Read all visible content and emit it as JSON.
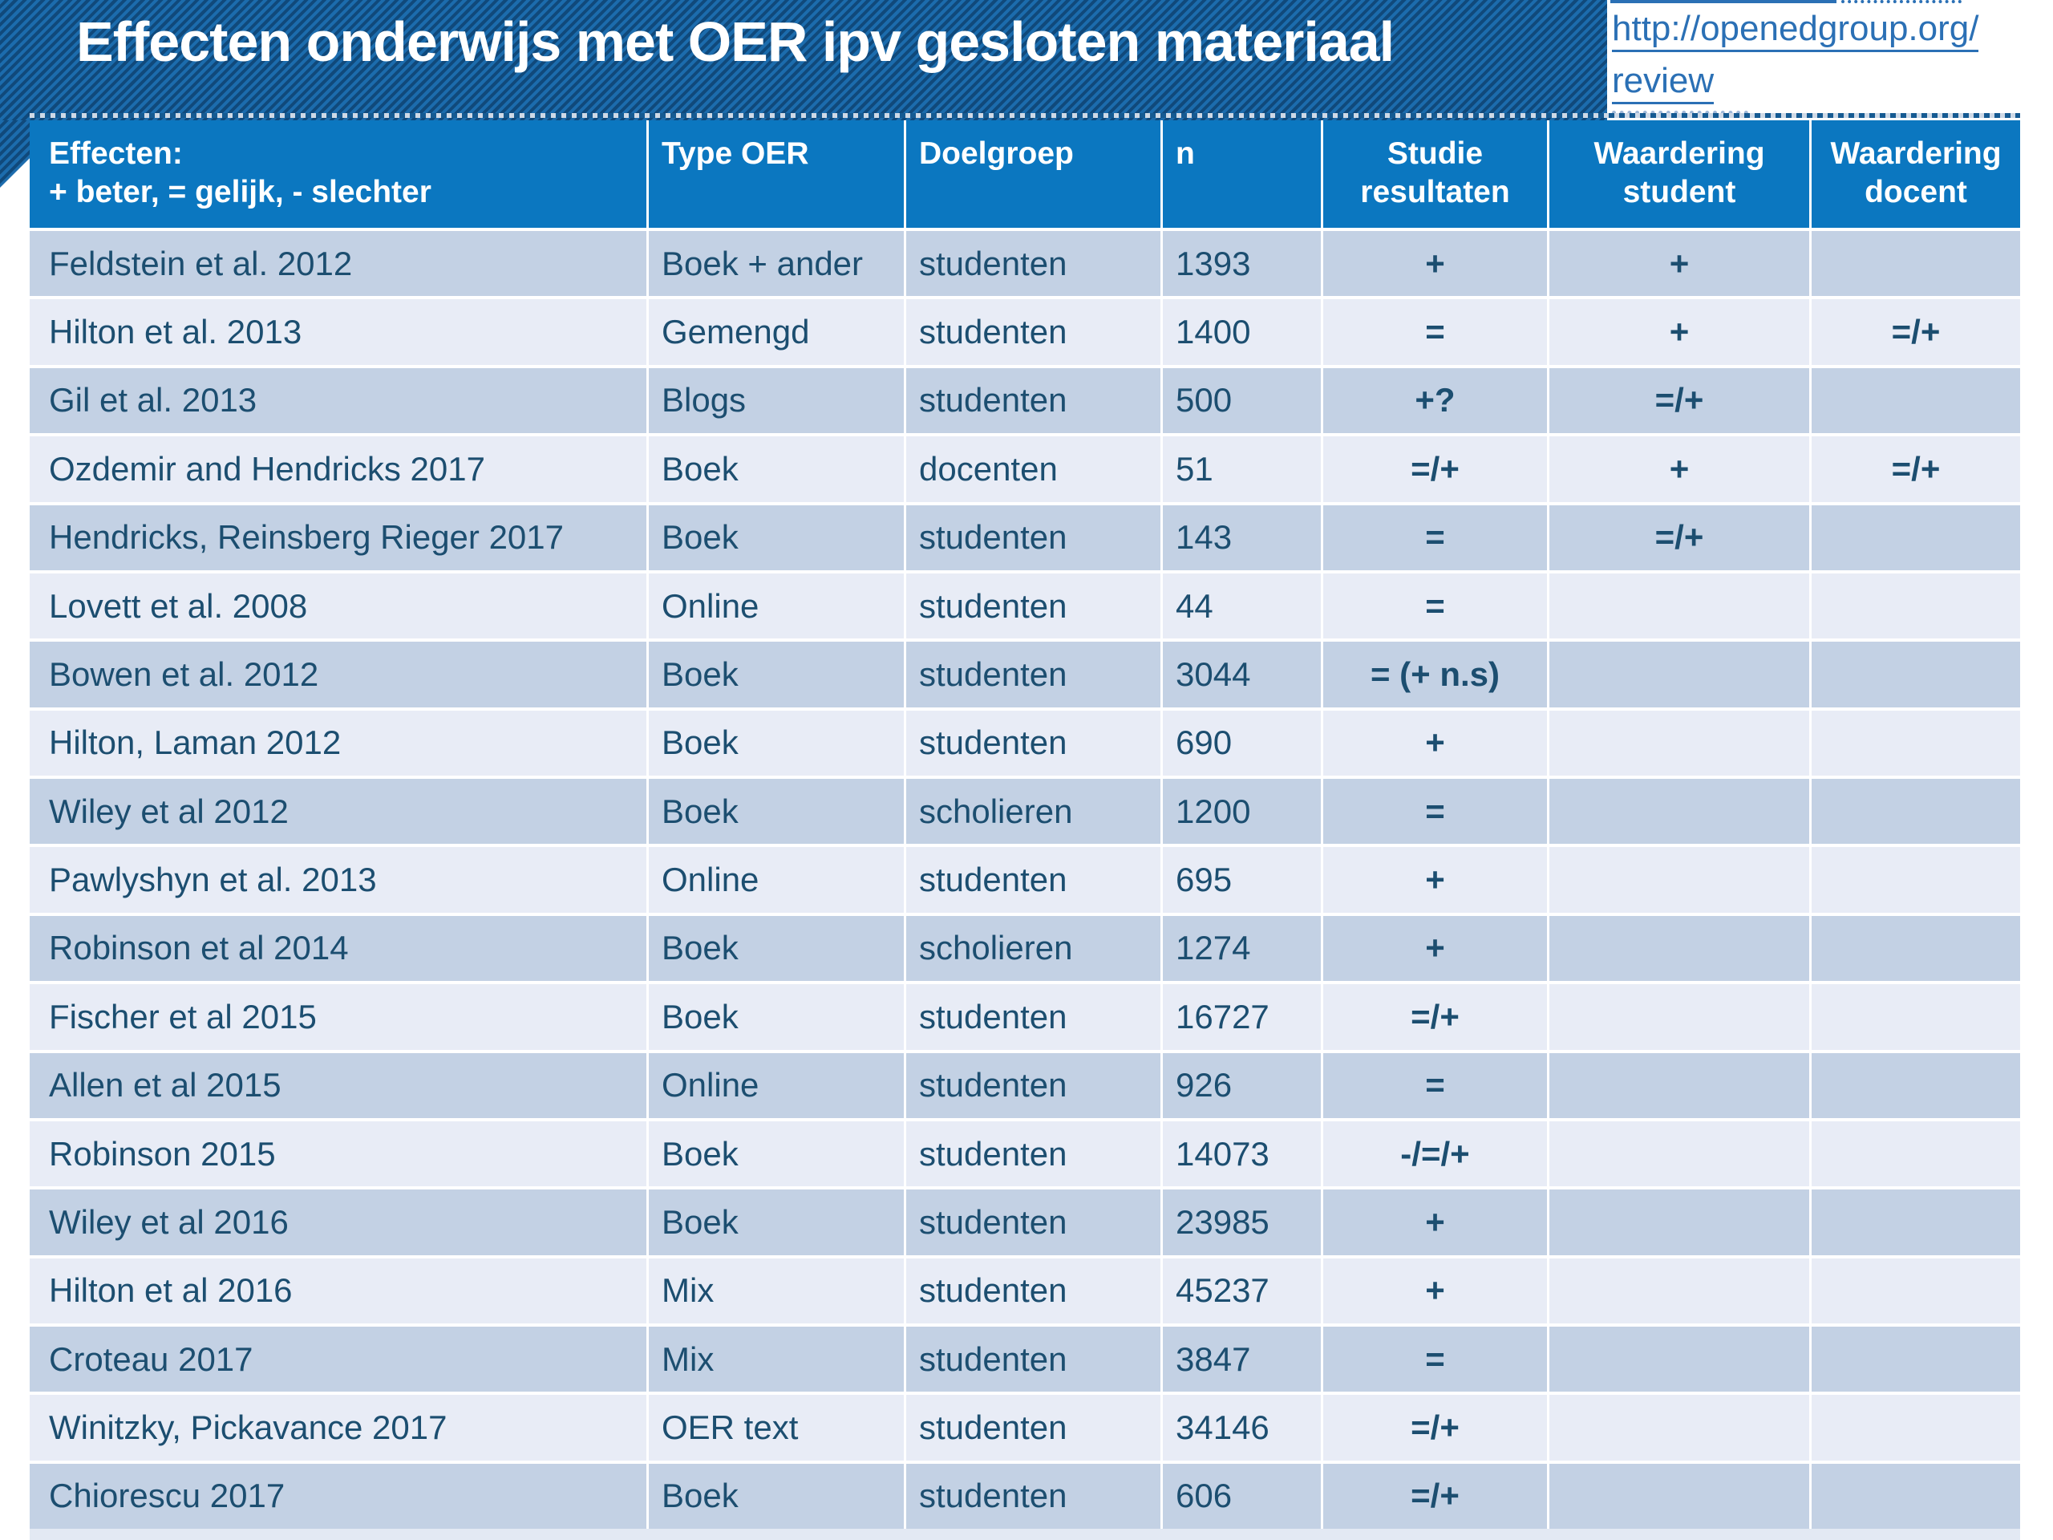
{
  "title": "Effecten onderwijs met OER ipv gesloten materiaal",
  "link": {
    "line1": "http://openedgroup.org/",
    "line2": "review",
    "full_url": "http://openedgroup.org/review"
  },
  "table": {
    "columns": [
      {
        "line1": "Effecten:",
        "line2": "+ beter, = gelijk, - slechter"
      },
      {
        "line1": "Type OER",
        "line2": ""
      },
      {
        "line1": "Doelgroep",
        "line2": ""
      },
      {
        "line1": "n",
        "line2": ""
      },
      {
        "line1": "Studie",
        "line2": "resultaten"
      },
      {
        "line1": "Waardering",
        "line2": "student"
      },
      {
        "line1": "Waardering",
        "line2": "docent"
      }
    ],
    "rows": [
      [
        "Feldstein et al. 2012",
        "Boek + ander",
        "studenten",
        "1393",
        "+",
        "+",
        ""
      ],
      [
        "Hilton et al. 2013",
        "Gemengd",
        "studenten",
        "1400",
        "=",
        "+",
        "=/+"
      ],
      [
        "Gil et al. 2013",
        "Blogs",
        "studenten",
        "500",
        "+?",
        "=/+",
        ""
      ],
      [
        "Ozdemir and Hendricks 2017",
        "Boek",
        "docenten",
        "51",
        "=/+",
        "+",
        "=/+"
      ],
      [
        "Hendricks, Reinsberg Rieger 2017",
        "Boek",
        "studenten",
        "143",
        "=",
        "=/+",
        ""
      ],
      [
        "Lovett et al. 2008",
        "Online",
        "studenten",
        "44",
        "=",
        "",
        ""
      ],
      [
        "Bowen et al. 2012",
        "Boek",
        "studenten",
        "3044",
        "= (+ n.s)",
        "",
        ""
      ],
      [
        "Hilton, Laman 2012",
        "Boek",
        "studenten",
        "690",
        "+",
        "",
        ""
      ],
      [
        "Wiley et al 2012",
        "Boek",
        "scholieren",
        "1200",
        "=",
        "",
        ""
      ],
      [
        "Pawlyshyn et al. 2013",
        "Online",
        "studenten",
        "695",
        "+",
        "",
        ""
      ],
      [
        "Robinson et al 2014",
        "Boek",
        "scholieren",
        "1274",
        "+",
        "",
        ""
      ],
      [
        "Fischer et al 2015",
        "Boek",
        "studenten",
        "16727",
        "=/+",
        "",
        ""
      ],
      [
        "Allen et al 2015",
        "Online",
        "studenten",
        "926",
        "=",
        "",
        ""
      ],
      [
        "Robinson 2015",
        "Boek",
        "studenten",
        "14073",
        "-/=/+",
        "",
        ""
      ],
      [
        "Wiley et al 2016",
        "Boek",
        "studenten",
        "23985",
        "+",
        "",
        ""
      ],
      [
        "Hilton et al 2016",
        "Mix",
        "studenten",
        "45237",
        "+",
        "",
        ""
      ],
      [
        "Croteau 2017",
        "Mix",
        "studenten",
        "3847",
        "=",
        "",
        ""
      ],
      [
        "Winitzky, Pickavance 2017",
        "OER text",
        "studenten",
        "34146",
        "=/+",
        "",
        ""
      ],
      [
        "Chiorescu 2017",
        "Boek",
        "studenten",
        "606",
        "=/+",
        "",
        ""
      ]
    ]
  },
  "colors": {
    "band_stripe_light": "#1c6cad",
    "band_stripe_dark": "#10497b",
    "header_blue": "#0b77c0",
    "row_dark": "#c3d1e4",
    "row_light": "#e8ecf6",
    "cell_text": "#1c4e70",
    "link_blue": "#2b70b5",
    "title_text": "#ffffff"
  }
}
